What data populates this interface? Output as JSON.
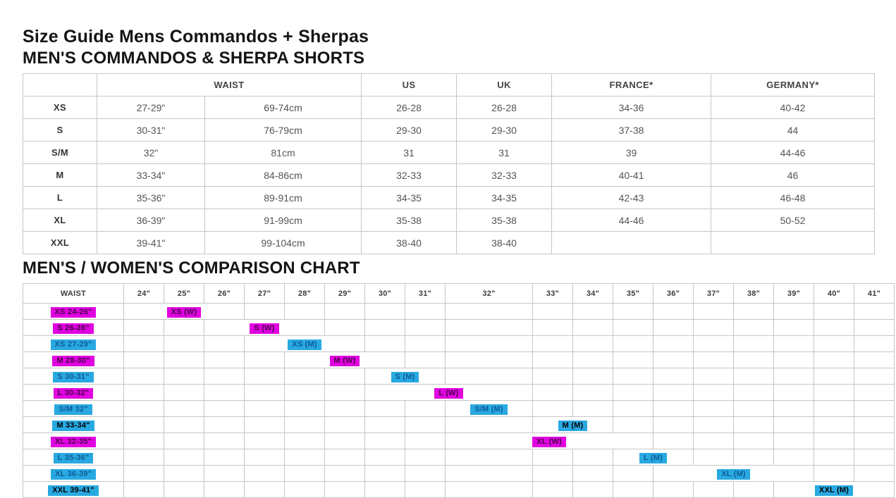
{
  "page": {
    "title": "Size Guide Mens Commandos + Sherpas",
    "section1_title": "MEN'S COMMANDOS & SHERPA SHORTS",
    "section2_title": "MEN'S / WOMEN'S COMPARISON CHART"
  },
  "size_table": {
    "col_headers": {
      "size": "",
      "waist": "WAIST",
      "us": "US",
      "uk": "UK",
      "france": "FRANCE*",
      "germany": "GERMANY*"
    },
    "rows": [
      {
        "size": "XS",
        "in": "27-29\"",
        "cm": "69-74cm",
        "us": "26-28",
        "uk": "26-28",
        "fr": "34-36",
        "de": "40-42"
      },
      {
        "size": "S",
        "in": "30-31\"",
        "cm": "76-79cm",
        "us": "29-30",
        "uk": "29-30",
        "fr": "37-38",
        "de": "44"
      },
      {
        "size": "S/M",
        "in": "32\"",
        "cm": "81cm",
        "us": "31",
        "uk": "31",
        "fr": "39",
        "de": "44-46"
      },
      {
        "size": "M",
        "in": "33-34\"",
        "cm": "84-86cm",
        "us": "32-33",
        "uk": "32-33",
        "fr": "40-41",
        "de": "46"
      },
      {
        "size": "L",
        "in": "35-36\"",
        "cm": "89-91cm",
        "us": "34-35",
        "uk": "34-35",
        "fr": "42-43",
        "de": "46-48"
      },
      {
        "size": "XL",
        "in": "36-39\"",
        "cm": "91-99cm",
        "us": "35-38",
        "uk": "35-38",
        "fr": "44-46",
        "de": "50-52"
      },
      {
        "size": "XXL",
        "in": "39-41\"",
        "cm": "99-104cm",
        "us": "38-40",
        "uk": "38-40",
        "fr": "",
        "de": ""
      }
    ]
  },
  "comparison_chart": {
    "waist_header": "WAIST",
    "columns": [
      "24\"",
      "25\"",
      "26\"",
      "27\"",
      "28\"",
      "29\"",
      "30\"",
      "31\"",
      "32\"",
      "33\"",
      "34\"",
      "35\"",
      "36\"",
      "37\"",
      "38\"",
      "39\"",
      "40\"",
      "41\""
    ],
    "wide_column": "32\"",
    "colors": {
      "women_bg": "#e003e0",
      "men_bg": "#29a9e1",
      "women_text": "#4b004b",
      "men_text": "#0e5c96",
      "bold_text": "#000000"
    },
    "rows": [
      {
        "label": "XS 24-26\"",
        "badge": "XS (W)",
        "gender": "women",
        "start": 24,
        "end": 26,
        "bold": false
      },
      {
        "label": "S 26-28\"",
        "badge": "S (W)",
        "gender": "women",
        "start": 26,
        "end": 28,
        "bold": false
      },
      {
        "label": "XS 27-29\"",
        "badge": "XS (M)",
        "gender": "men",
        "start": 27,
        "end": 29,
        "bold": false
      },
      {
        "label": "M 28-30\"",
        "badge": "M (W)",
        "gender": "women",
        "start": 28,
        "end": 30,
        "bold": false
      },
      {
        "label": "S 30-31\"",
        "badge": "S (M)",
        "gender": "men",
        "start": 30,
        "end": 31,
        "bold": false
      },
      {
        "label": "L 30-32\"",
        "badge": "L (W)",
        "gender": "women",
        "start": 30,
        "end": 32,
        "bold": false
      },
      {
        "label": "S/M 32\"",
        "badge": "S/M (M)",
        "gender": "men",
        "start": 32,
        "end": 32,
        "bold": false
      },
      {
        "label": "M 33-34\"",
        "badge": "M (M)",
        "gender": "men",
        "start": 33,
        "end": 34,
        "bold": true
      },
      {
        "label": "XL 32-35\"",
        "badge": "XL (W)",
        "gender": "women",
        "start": 32,
        "end": 35,
        "bold": false
      },
      {
        "label": "L 35-36\"",
        "badge": "L (M)",
        "gender": "men",
        "start": 35,
        "end": 36,
        "bold": false
      },
      {
        "label": "XL 36-39\"",
        "badge": "XL (M)",
        "gender": "men",
        "start": 36,
        "end": 39,
        "bold": false
      },
      {
        "label": "XXL 39-41\"",
        "badge": "XXL (M)",
        "gender": "men",
        "start": 39,
        "end": 41,
        "bold": true
      }
    ]
  }
}
